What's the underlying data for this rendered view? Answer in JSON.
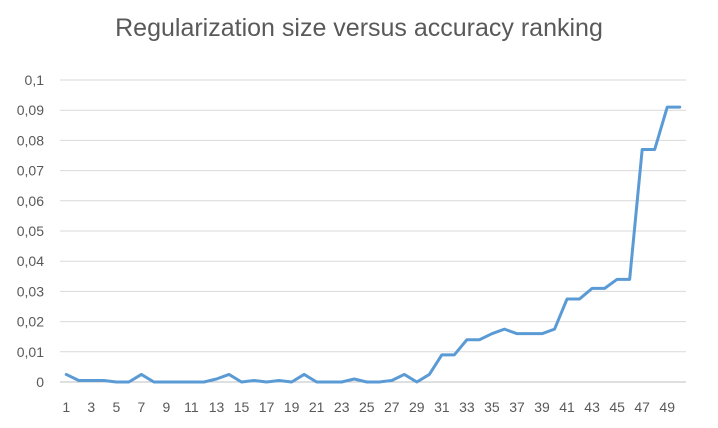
{
  "chart_data": {
    "type": "line",
    "title": "Regularization size versus accuracy ranking",
    "xlabel": "",
    "ylabel": "",
    "ylim": [
      0,
      0.1
    ],
    "y_ticks": [
      "0",
      "0,01",
      "0,02",
      "0,03",
      "0,04",
      "0,05",
      "0,06",
      "0,07",
      "0,08",
      "0,09",
      "0,1"
    ],
    "x_ticks_shown": [
      "1",
      "3",
      "5",
      "7",
      "9",
      "11",
      "13",
      "15",
      "17",
      "19",
      "21",
      "23",
      "25",
      "27",
      "29",
      "31",
      "33",
      "35",
      "37",
      "39",
      "41",
      "43",
      "45",
      "47",
      "49"
    ],
    "x": [
      1,
      2,
      3,
      4,
      5,
      6,
      7,
      8,
      9,
      10,
      11,
      12,
      13,
      14,
      15,
      16,
      17,
      18,
      19,
      20,
      21,
      22,
      23,
      24,
      25,
      26,
      27,
      28,
      29,
      30,
      31,
      32,
      33,
      34,
      35,
      36,
      37,
      38,
      39,
      40,
      41,
      42,
      43,
      44,
      45,
      46,
      47,
      48,
      49,
      50
    ],
    "series": [
      {
        "values": [
          0.0025,
          0.0005,
          0.0005,
          0.0005,
          0.0,
          0.0,
          0.0025,
          0.0,
          0.0,
          0.0,
          0.0,
          0.0,
          0.001,
          0.0025,
          0.0,
          0.0005,
          0.0,
          0.0005,
          0.0,
          0.0025,
          0.0,
          0.0,
          0.0,
          0.001,
          0.0,
          0.0,
          0.0005,
          0.0025,
          0.0,
          0.0025,
          0.009,
          0.009,
          0.014,
          0.014,
          0.016,
          0.0175,
          0.016,
          0.016,
          0.016,
          0.0175,
          0.0275,
          0.0275,
          0.031,
          0.031,
          0.034,
          0.034,
          0.077,
          0.077,
          0.091,
          0.091
        ],
        "color": "#5b9bd5"
      }
    ],
    "grid": true,
    "legend": "none"
  }
}
